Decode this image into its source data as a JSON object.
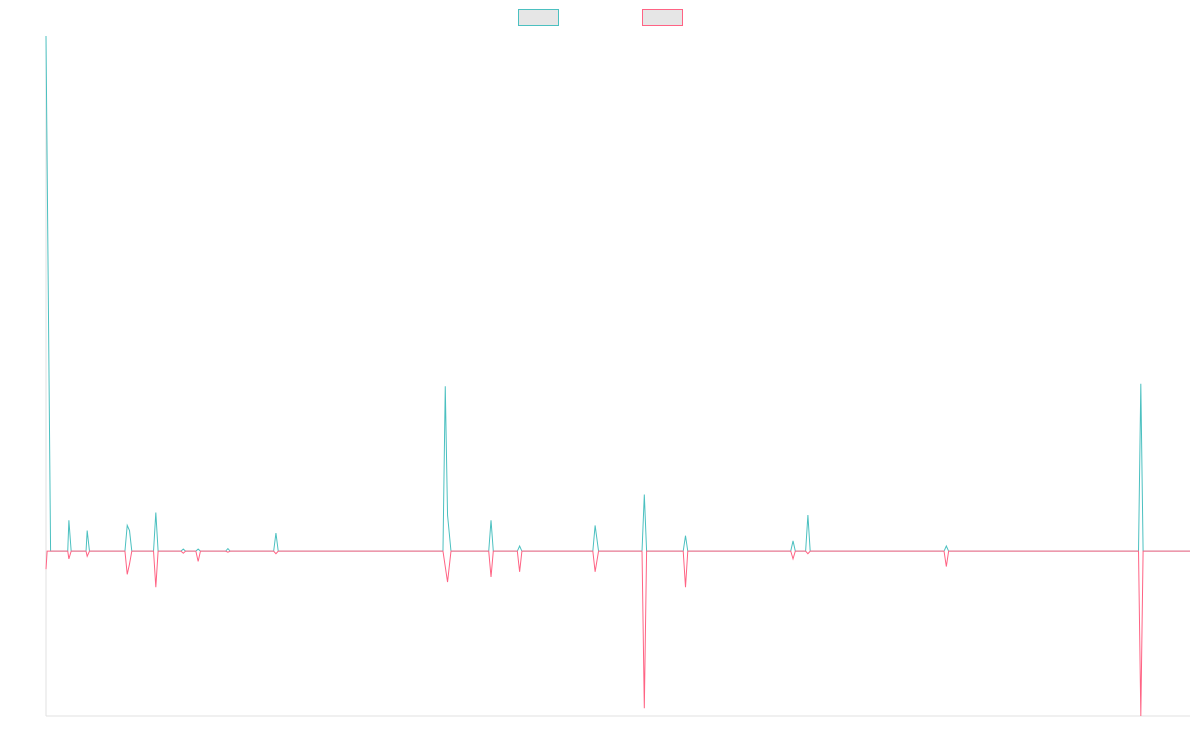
{
  "chart_data": {
    "type": "line",
    "title": "",
    "xlabel": "",
    "ylabel": "",
    "grid": false,
    "legend_position": "top-center",
    "ylim": [
      -0.32,
      1.0
    ],
    "xlim": [
      0,
      1000
    ],
    "baseline": 0,
    "series": [
      {
        "color": "#4bc0c0",
        "legend_fill": "#e6e6e6",
        "points": [
          [
            0,
            1.0
          ],
          [
            4,
            0.0
          ],
          [
            19,
            0.0
          ],
          [
            20,
            0.06
          ],
          [
            22,
            0.0
          ],
          [
            35,
            0.0
          ],
          [
            36,
            0.04
          ],
          [
            38,
            0.0
          ],
          [
            69,
            0.0
          ],
          [
            71,
            0.05
          ],
          [
            73,
            0.04
          ],
          [
            75,
            0.0
          ],
          [
            94,
            0.0
          ],
          [
            96,
            0.075
          ],
          [
            98,
            0.0
          ],
          [
            118,
            0.0
          ],
          [
            120,
            0.004
          ],
          [
            122,
            0.0
          ],
          [
            131,
            0.0
          ],
          [
            133,
            0.004
          ],
          [
            135,
            0.0
          ],
          [
            157,
            0.0
          ],
          [
            159,
            0.005
          ],
          [
            161,
            0.0
          ],
          [
            199,
            0.0
          ],
          [
            201,
            0.035
          ],
          [
            203,
            0.0
          ],
          [
            347,
            0.0
          ],
          [
            349,
            0.32
          ],
          [
            351,
            0.07
          ],
          [
            354,
            0.0
          ],
          [
            387,
            0.0
          ],
          [
            389,
            0.06
          ],
          [
            391,
            0.0
          ],
          [
            412,
            0.0
          ],
          [
            414,
            0.01
          ],
          [
            416,
            0.0
          ],
          [
            478,
            0.0
          ],
          [
            480,
            0.05
          ],
          [
            483,
            0.0
          ],
          [
            521,
            0.0
          ],
          [
            523,
            0.11
          ],
          [
            525,
            0.0
          ],
          [
            557,
            0.0
          ],
          [
            559,
            0.03
          ],
          [
            561,
            0.0
          ],
          [
            651,
            0.0
          ],
          [
            653,
            0.02
          ],
          [
            655,
            0.0
          ],
          [
            664,
            0.0
          ],
          [
            666,
            0.07
          ],
          [
            668,
            0.0
          ],
          [
            785,
            0.0
          ],
          [
            787,
            0.01
          ],
          [
            789,
            0.0
          ],
          [
            955,
            0.0
          ],
          [
            957,
            0.325
          ],
          [
            959,
            0.0
          ],
          [
            1000,
            0.0
          ]
        ]
      },
      {
        "color": "#ff6384",
        "legend_fill": "#e6e6e6",
        "points": [
          [
            0,
            -0.035
          ],
          [
            1,
            0.0
          ],
          [
            19,
            0.0
          ],
          [
            20,
            -0.015
          ],
          [
            22,
            0.0
          ],
          [
            35,
            0.0
          ],
          [
            36,
            -0.01
          ],
          [
            38,
            0.0
          ],
          [
            69,
            0.0
          ],
          [
            71,
            -0.045
          ],
          [
            73,
            -0.025
          ],
          [
            75,
            0.0
          ],
          [
            94,
            0.0
          ],
          [
            96,
            -0.07
          ],
          [
            98,
            0.0
          ],
          [
            118,
            0.0
          ],
          [
            120,
            -0.004
          ],
          [
            122,
            0.0
          ],
          [
            131,
            0.0
          ],
          [
            133,
            -0.02
          ],
          [
            135,
            0.0
          ],
          [
            157,
            0.0
          ],
          [
            159,
            -0.002
          ],
          [
            161,
            0.0
          ],
          [
            199,
            0.0
          ],
          [
            201,
            -0.005
          ],
          [
            203,
            0.0
          ],
          [
            347,
            0.0
          ],
          [
            351,
            -0.06
          ],
          [
            354,
            0.0
          ],
          [
            387,
            0.0
          ],
          [
            389,
            -0.05
          ],
          [
            391,
            0.0
          ],
          [
            412,
            0.0
          ],
          [
            414,
            -0.04
          ],
          [
            416,
            0.0
          ],
          [
            478,
            0.0
          ],
          [
            480,
            -0.04
          ],
          [
            483,
            0.0
          ],
          [
            521,
            0.0
          ],
          [
            523,
            -0.305
          ],
          [
            525,
            0.0
          ],
          [
            557,
            0.0
          ],
          [
            559,
            -0.07
          ],
          [
            561,
            0.0
          ],
          [
            651,
            0.0
          ],
          [
            653,
            -0.015
          ],
          [
            655,
            0.0
          ],
          [
            664,
            0.0
          ],
          [
            666,
            -0.005
          ],
          [
            668,
            0.0
          ],
          [
            785,
            0.0
          ],
          [
            787,
            -0.03
          ],
          [
            789,
            0.0
          ],
          [
            955,
            0.0
          ],
          [
            957,
            -0.32
          ],
          [
            959,
            0.0
          ],
          [
            1000,
            0.0
          ]
        ]
      }
    ]
  }
}
